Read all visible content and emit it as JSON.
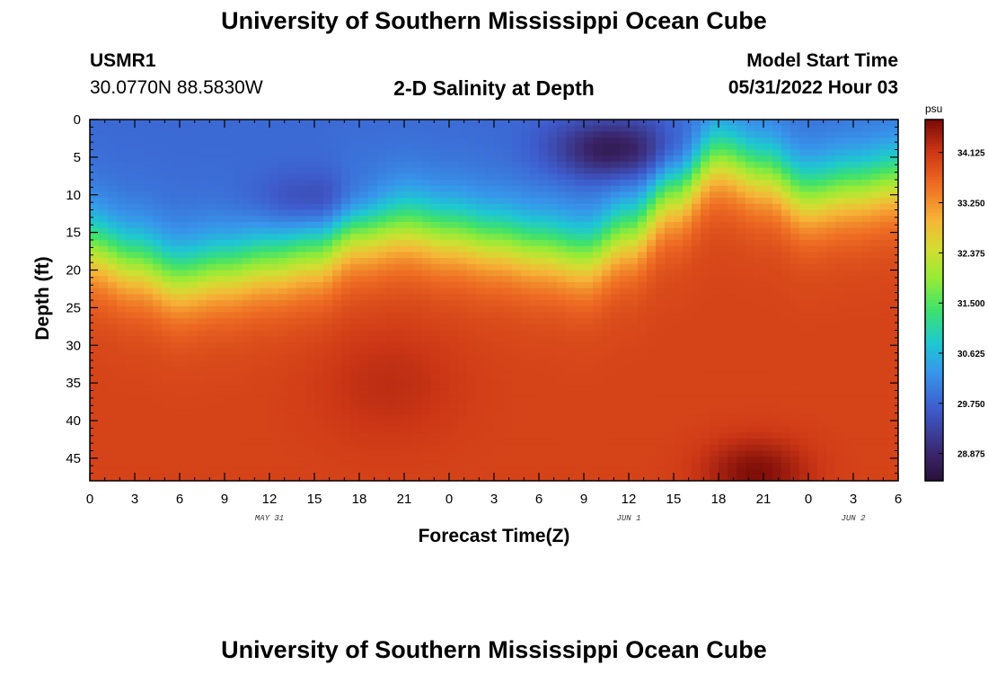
{
  "page": {
    "title": "University of Southern Mississippi Ocean Cube",
    "footer_title": "University of Southern Mississippi Ocean Cube"
  },
  "header": {
    "station_id": "USMR1",
    "coordinates": "30.0770N  88.5830W",
    "plot_title": "2-D Salinity at Depth",
    "model_label": "Model Start Time",
    "model_time": "05/31/2022 Hour 03"
  },
  "chart_data": {
    "type": "heatmap",
    "title": "2-D Salinity at Depth",
    "xlabel": "Forecast Time(Z)",
    "ylabel": "Depth (ft)",
    "x_ticks": [
      "0",
      "3",
      "6",
      "9",
      "12",
      "15",
      "18",
      "21",
      "0",
      "3",
      "6",
      "9",
      "12",
      "15",
      "18",
      "21",
      "0",
      "3",
      "6"
    ],
    "x_hours_range": [
      0,
      54
    ],
    "date_labels": [
      {
        "text": "MAY 31",
        "hour": 12
      },
      {
        "text": "JUN 1",
        "hour": 36
      },
      {
        "text": "JUN 2",
        "hour": 51
      }
    ],
    "y_ticks": [
      "0",
      "5",
      "10",
      "15",
      "20",
      "25",
      "30",
      "35",
      "40",
      "45"
    ],
    "ylim": [
      0,
      48
    ],
    "y_reversed": true,
    "colorbar": {
      "unit": "psu",
      "labels": [
        "34.125",
        "33.250",
        "32.375",
        "31.500",
        "30.625",
        "29.750",
        "28.875"
      ],
      "label_values": [
        34.125,
        33.25,
        32.375,
        31.5,
        30.625,
        29.75,
        28.875
      ],
      "range": [
        28.4,
        34.7
      ]
    },
    "halocline_depth_ft": [
      {
        "hour": 0,
        "depth": 17
      },
      {
        "hour": 3,
        "depth": 19
      },
      {
        "hour": 6,
        "depth": 21
      },
      {
        "hour": 9,
        "depth": 20
      },
      {
        "hour": 12,
        "depth": 19
      },
      {
        "hour": 15,
        "depth": 18
      },
      {
        "hour": 18,
        "depth": 15
      },
      {
        "hour": 21,
        "depth": 14
      },
      {
        "hour": 24,
        "depth": 15
      },
      {
        "hour": 27,
        "depth": 16
      },
      {
        "hour": 30,
        "depth": 17
      },
      {
        "hour": 33,
        "depth": 18
      },
      {
        "hour": 36,
        "depth": 15
      },
      {
        "hour": 39,
        "depth": 10
      },
      {
        "hour": 42,
        "depth": 5
      },
      {
        "hour": 45,
        "depth": 7
      },
      {
        "hour": 48,
        "depth": 10
      },
      {
        "hour": 51,
        "depth": 9
      },
      {
        "hour": 54,
        "depth": 8
      }
    ],
    "surface_salinity_psu": 29.8,
    "bottom_salinity_psu": 34.0,
    "features": [
      {
        "desc": "fresh core",
        "hour": 35,
        "depth": 4,
        "psu": 28.6
      },
      {
        "desc": "fresh core",
        "hour": 15,
        "depth": 11,
        "psu": 29.2
      },
      {
        "desc": "salty core",
        "hour": 44.5,
        "depth": 47,
        "psu": 34.65
      }
    ]
  }
}
